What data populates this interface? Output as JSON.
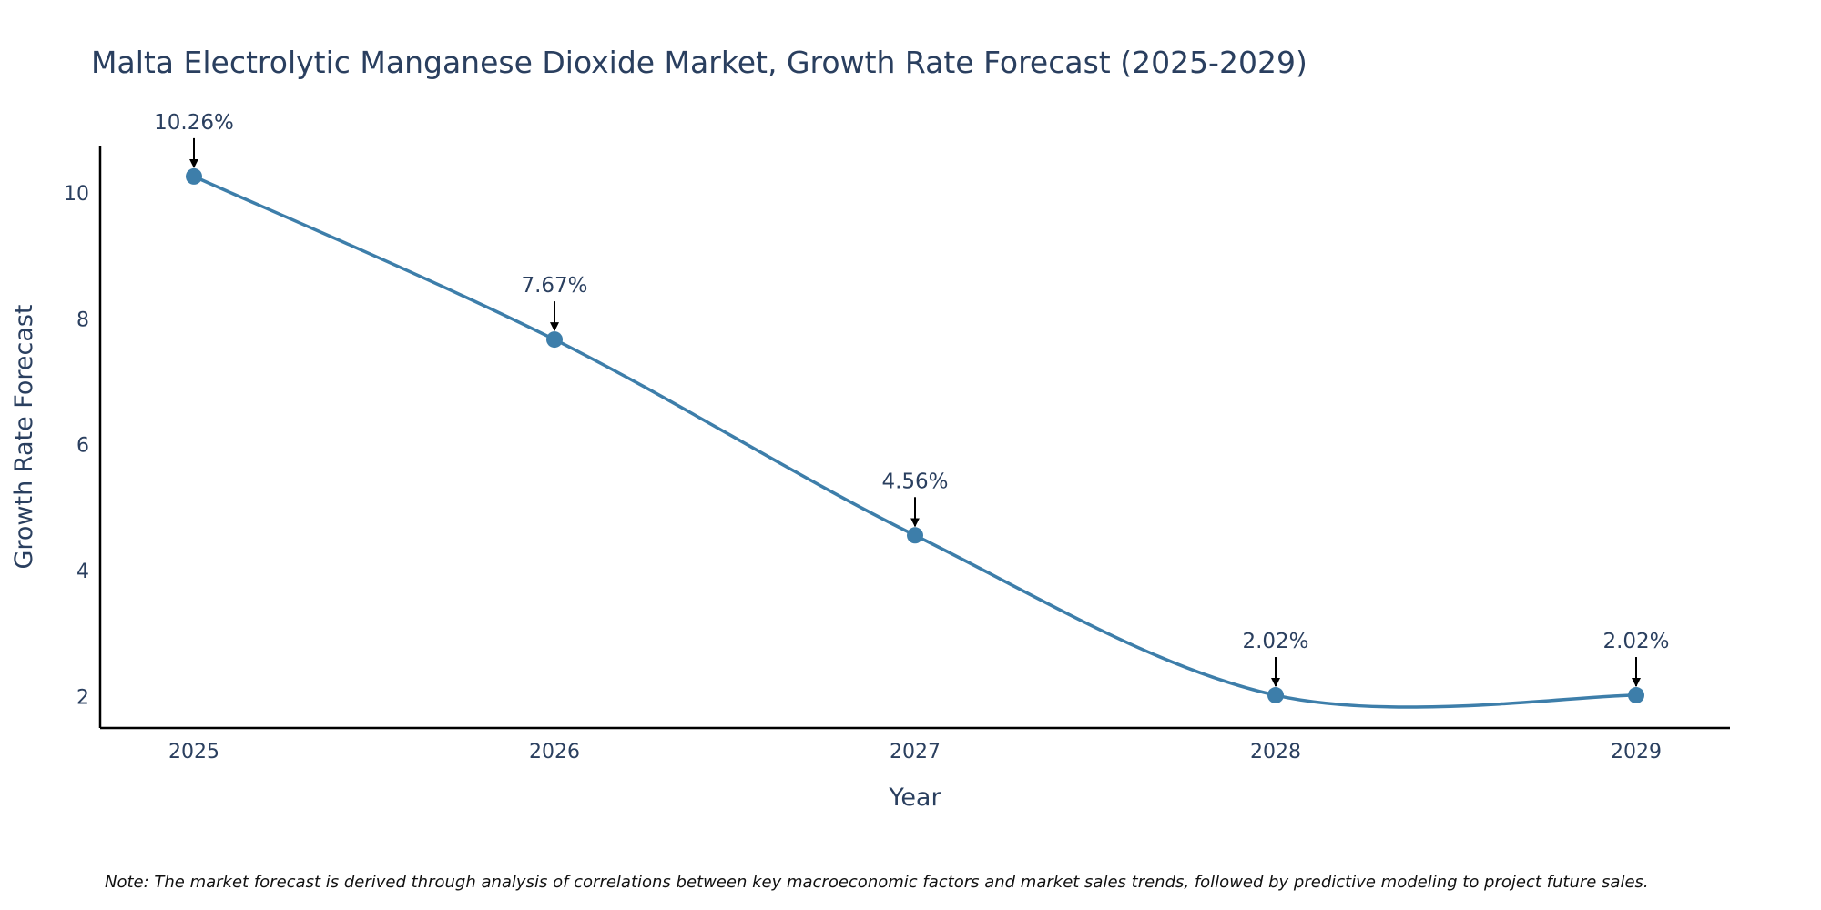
{
  "chart_data": {
    "type": "line",
    "title": "Malta Electrolytic Manganese Dioxide Market, Growth Rate Forecast (2025-2029)",
    "xlabel": "Year",
    "ylabel": "Growth Rate Forecast",
    "categories": [
      "2025",
      "2026",
      "2027",
      "2028",
      "2029"
    ],
    "series": [
      {
        "name": "Growth Rate Forecast",
        "values": [
          10.26,
          7.67,
          4.56,
          2.02,
          2.02
        ],
        "color": "#3d7eaa"
      }
    ],
    "data_labels": [
      "10.26%",
      "7.67%",
      "4.56%",
      "2.02%",
      "2.02%"
    ],
    "ylim": [
      1.5,
      10.75
    ],
    "yticks": [
      2,
      4,
      6,
      8,
      10
    ],
    "grid": false,
    "legend": "none",
    "note": "Note: The market forecast is derived through analysis of correlations between key macroeconomic factors and market sales trends, followed by predictive modeling to project future sales."
  },
  "colors": {
    "line": "#3d7eaa",
    "text": "#2a3f5f",
    "axis": "#000000",
    "arrow": "#000000"
  }
}
